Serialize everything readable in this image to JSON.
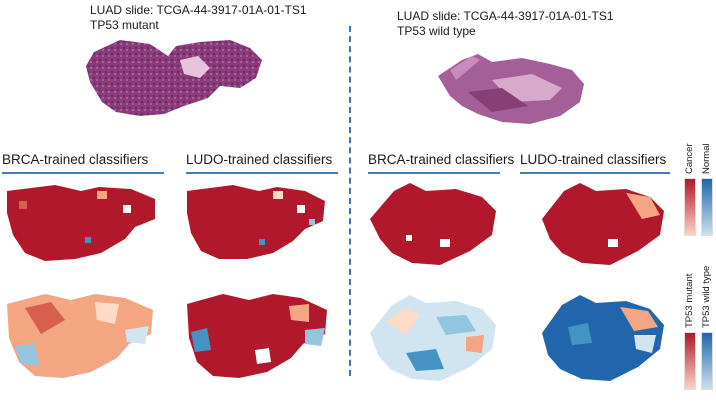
{
  "left": {
    "slide_title": "LUAD slide: TCGA-44-3917-01A-01-TS1",
    "mutation": "TP53 mutant",
    "brca_header": "BRCA-trained classifiers",
    "ludo_header": "LUDO-trained classifiers"
  },
  "right": {
    "slide_title": "LUAD slide: TCGA-44-3917-01A-01-TS1",
    "mutation": "TP53 wild type",
    "brca_header": "BRCA-trained classifiers",
    "ludo_header": "LUDO-trained classifiers"
  },
  "legend": {
    "cancer": "Cancer",
    "normal": "Normal",
    "tp53_mutant": "TP53 mutant",
    "tp53_wild_type": "TP53 wild type"
  },
  "colors": {
    "dark_red": "#b2182b",
    "dark_blue": "#2166ac",
    "divider": "#3f6fc2",
    "he_stain": "#8a3c7a"
  }
}
